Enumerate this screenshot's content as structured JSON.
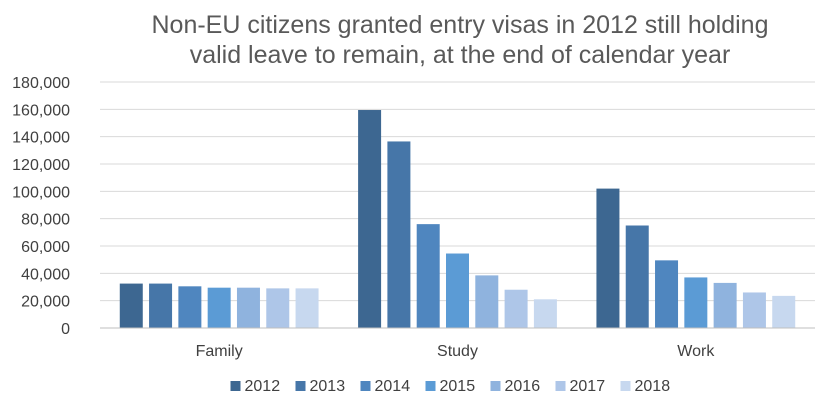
{
  "chart_data": {
    "type": "bar",
    "title_lines": [
      "Non-EU citizens granted entry visas in 2012 still holding",
      "valid leave to remain, at the end of calendar year"
    ],
    "categories": [
      "Family",
      "Study",
      "Work"
    ],
    "series": [
      {
        "name": "2012",
        "color": "#3d6791",
        "values": [
          32500,
          159500,
          102000
        ]
      },
      {
        "name": "2013",
        "color": "#4676a8",
        "values": [
          32500,
          136500,
          75000
        ]
      },
      {
        "name": "2014",
        "color": "#4f86bf",
        "values": [
          30500,
          76000,
          49500
        ]
      },
      {
        "name": "2015",
        "color": "#5b9bd5",
        "values": [
          29500,
          54500,
          37000
        ]
      },
      {
        "name": "2016",
        "color": "#8fb3de",
        "values": [
          29500,
          38500,
          33000
        ]
      },
      {
        "name": "2017",
        "color": "#aec6e8",
        "values": [
          29000,
          28000,
          26000
        ]
      },
      {
        "name": "2018",
        "color": "#c7d8ef",
        "values": [
          29000,
          21000,
          23500
        ]
      }
    ],
    "y_ticks": [
      "0",
      "20,000",
      "40,000",
      "60,000",
      "80,000",
      "100,000",
      "120,000",
      "140,000",
      "160,000",
      "180,000"
    ],
    "ylim": [
      0,
      180000
    ],
    "grid": true,
    "legend_position": "bottom"
  }
}
